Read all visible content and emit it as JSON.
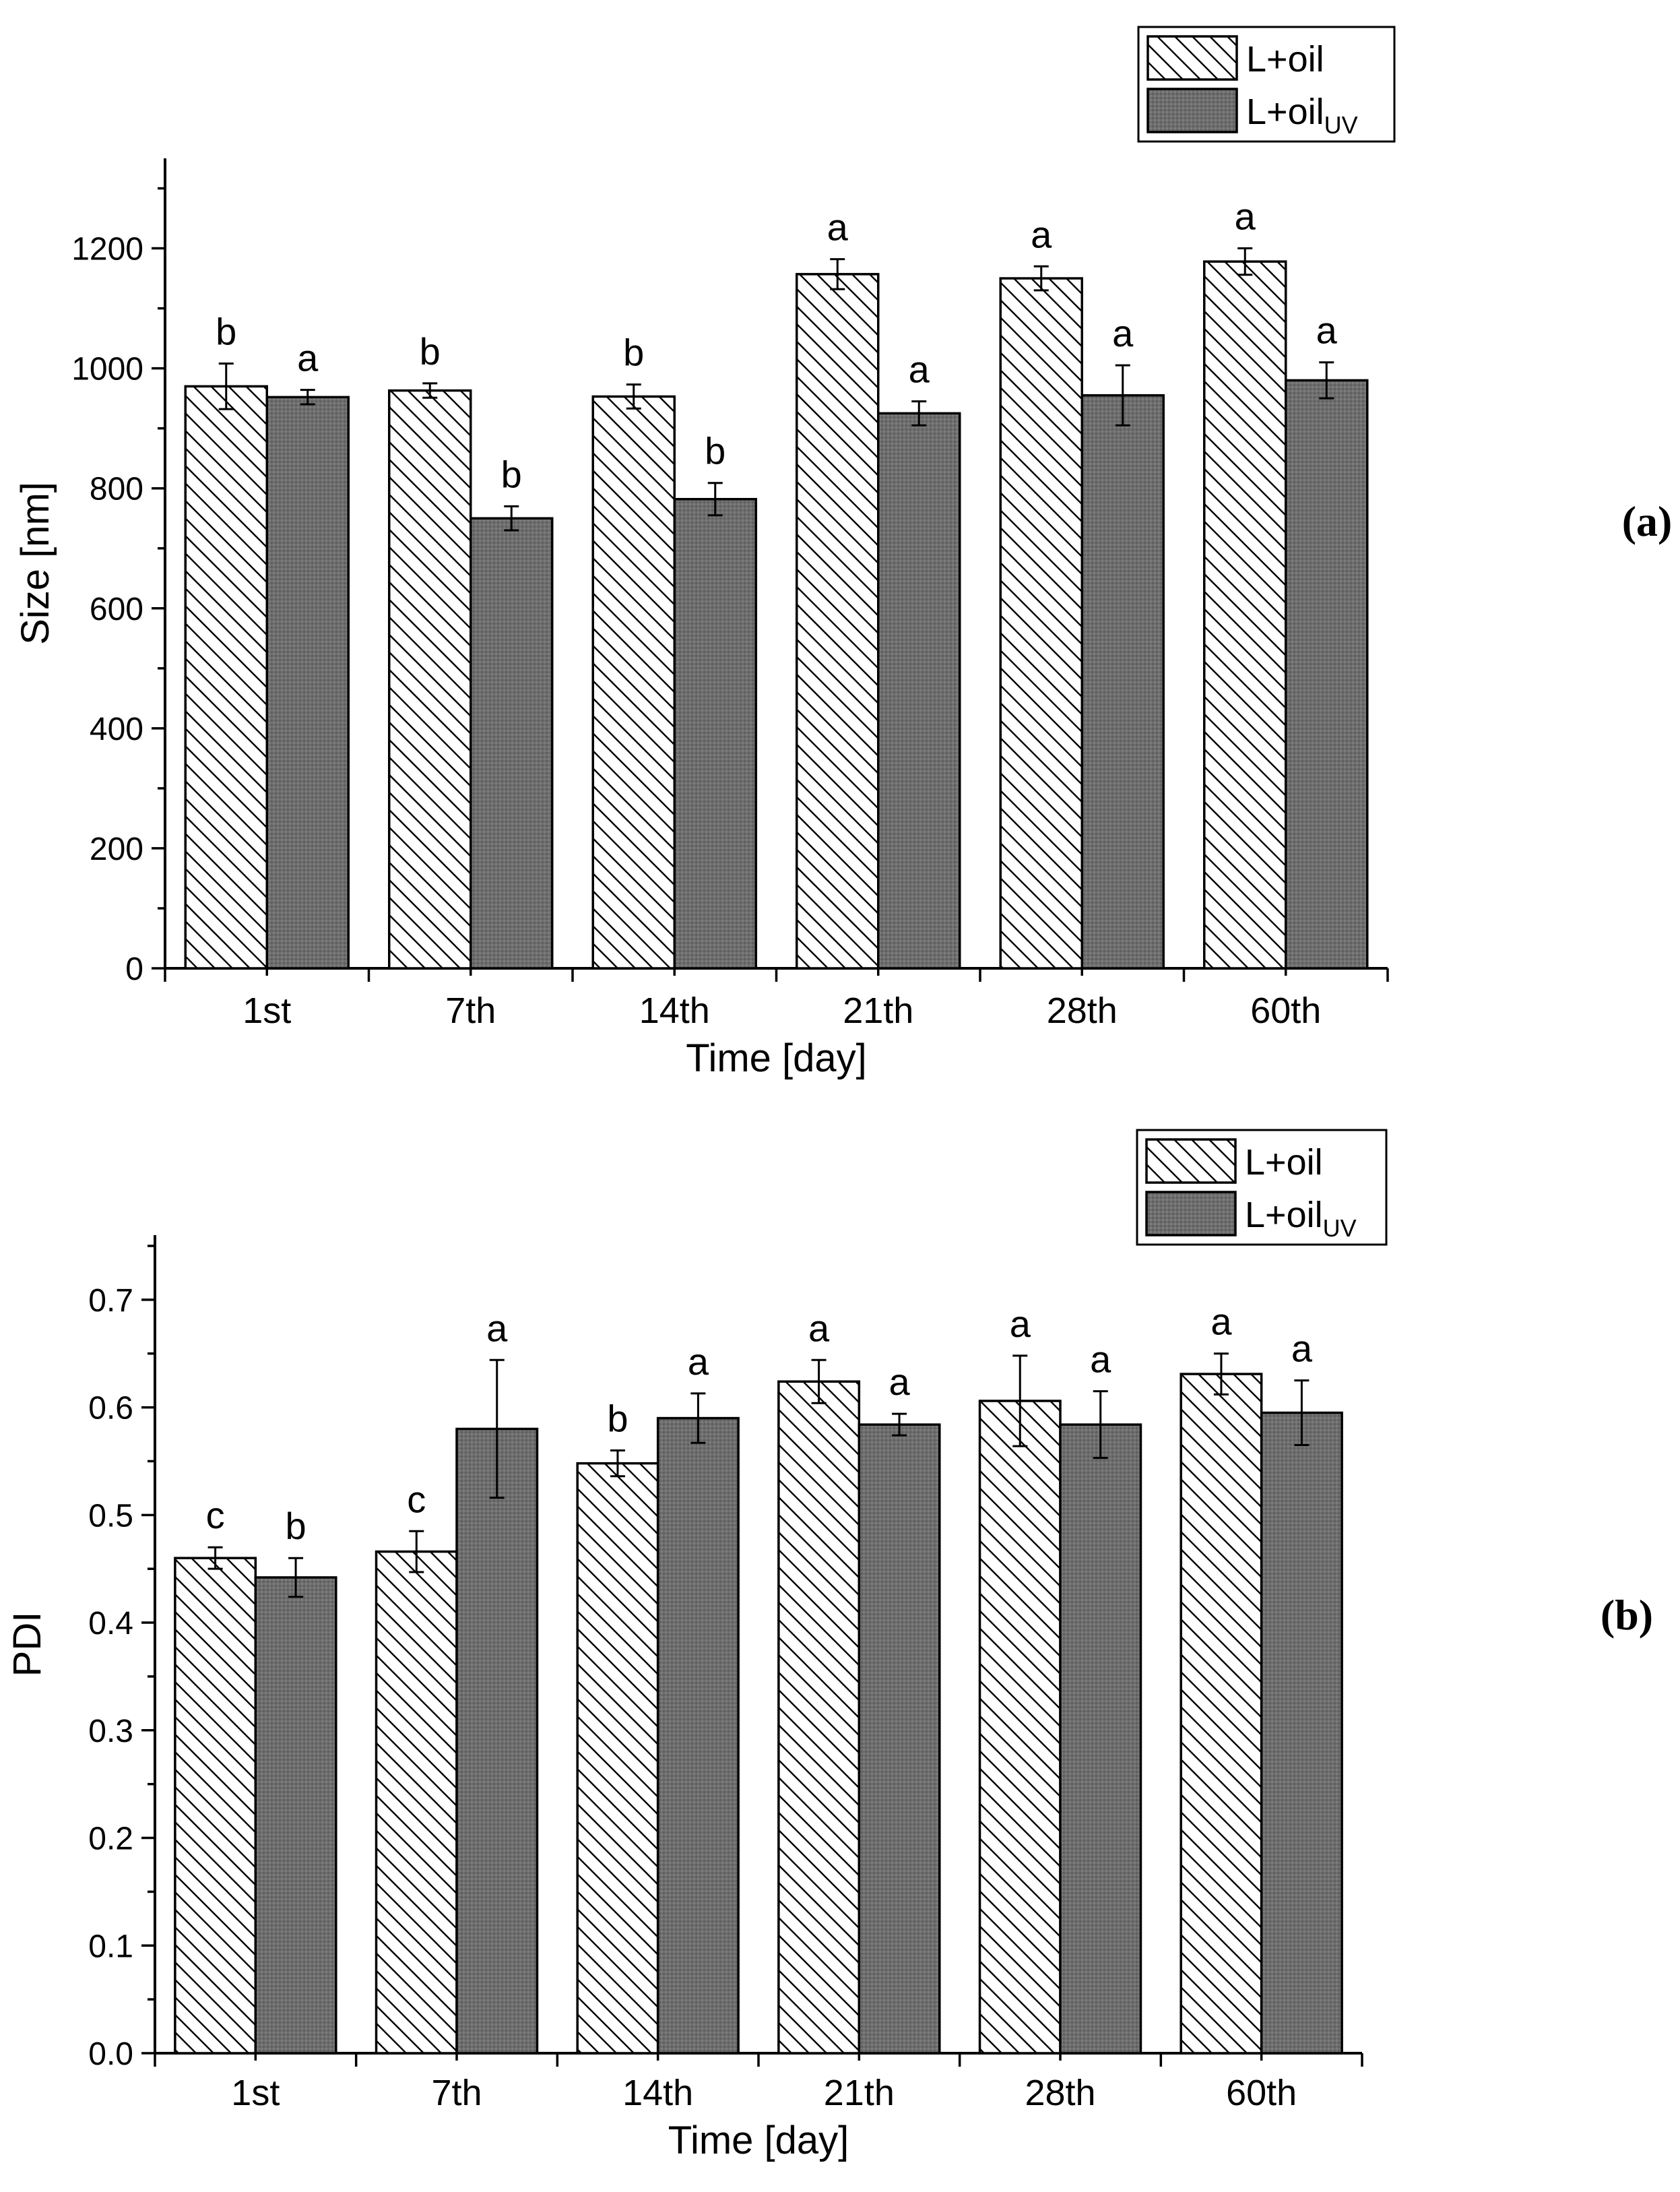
{
  "colors": {
    "oil_fill": "#ffffff",
    "uv_fill": "#707070",
    "stroke": "#000000"
  },
  "chart_data": [
    {
      "type": "bar",
      "panel_label": "(a)",
      "ylabel": "Size [nm]",
      "xlabel": "Time [day]",
      "ylim": [
        0,
        1350
      ],
      "yticks": [
        0,
        200,
        400,
        600,
        800,
        1000,
        1200
      ],
      "ytick_labels": [
        "0",
        "200",
        "400",
        "600",
        "800",
        "1000",
        "1200"
      ],
      "categories": [
        "1st",
        "7th",
        "14th",
        "21th",
        "28th",
        "60th"
      ],
      "legend": {
        "position": "top-right",
        "entries": [
          {
            "name": "L+oil",
            "sub": ""
          },
          {
            "name": "L+oil",
            "sub": "UV"
          }
        ]
      },
      "series": [
        {
          "name": "L+oil",
          "pattern": "hatch",
          "values": [
            970,
            963,
            953,
            1157,
            1150,
            1178
          ],
          "errors": [
            38,
            12,
            20,
            25,
            20,
            22
          ],
          "letters": [
            "b",
            "b",
            "b",
            "a",
            "a",
            "a"
          ]
        },
        {
          "name": "L+oil UV",
          "pattern": "dark",
          "values": [
            952,
            750,
            782,
            925,
            955,
            980
          ],
          "errors": [
            12,
            20,
            27,
            20,
            50,
            30
          ],
          "letters": [
            "a",
            "b",
            "b",
            "a",
            "a",
            "a"
          ]
        }
      ]
    },
    {
      "type": "bar",
      "panel_label": "(b)",
      "ylabel": "PDI",
      "xlabel": "Time [day]",
      "ylim": [
        0,
        0.76
      ],
      "yticks": [
        0,
        0.1,
        0.2,
        0.3,
        0.4,
        0.5,
        0.6,
        0.7
      ],
      "ytick_labels": [
        "0.0",
        "0.1",
        "0.2",
        "0.3",
        "0.4",
        "0.5",
        "0.6",
        "0.7"
      ],
      "categories": [
        "1st",
        "7th",
        "14th",
        "21th",
        "28th",
        "60th"
      ],
      "legend": {
        "position": "top-right",
        "entries": [
          {
            "name": "L+oil",
            "sub": ""
          },
          {
            "name": "L+oil",
            "sub": "UV"
          }
        ]
      },
      "series": [
        {
          "name": "L+oil",
          "pattern": "hatch",
          "values": [
            0.46,
            0.466,
            0.548,
            0.624,
            0.606,
            0.631
          ],
          "errors": [
            0.01,
            0.019,
            0.012,
            0.02,
            0.042,
            0.019
          ],
          "letters": [
            "c",
            "c",
            "b",
            "a",
            "a",
            "a"
          ]
        },
        {
          "name": "L+oil UV",
          "pattern": "dark",
          "values": [
            0.442,
            0.58,
            0.59,
            0.584,
            0.584,
            0.595
          ],
          "errors": [
            0.018,
            0.064,
            0.023,
            0.01,
            0.031,
            0.03
          ],
          "letters": [
            "b",
            "a",
            "a",
            "a",
            "a",
            "a"
          ]
        }
      ]
    }
  ]
}
